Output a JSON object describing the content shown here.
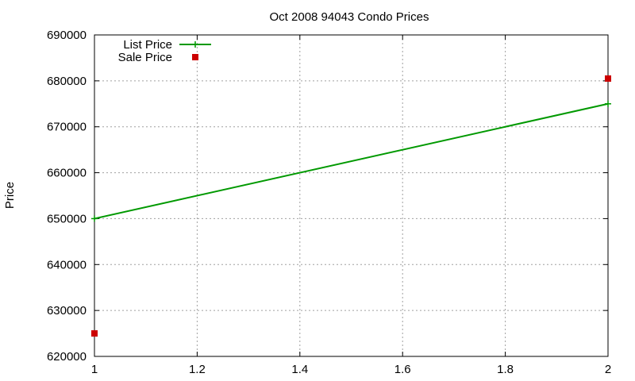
{
  "chart_data": {
    "type": "line",
    "title": "Oct 2008 94043 Condo Prices",
    "xlabel": "",
    "ylabel": "Price",
    "xlim": [
      1,
      2
    ],
    "ylim": [
      620000,
      690000
    ],
    "x_ticks": [
      1,
      1.2,
      1.4,
      1.6,
      1.8,
      2
    ],
    "x_tick_labels": [
      "1",
      "1.2",
      "1.4",
      "1.6",
      "1.8",
      "2"
    ],
    "y_ticks": [
      620000,
      630000,
      640000,
      650000,
      660000,
      670000,
      680000,
      690000
    ],
    "y_tick_labels": [
      "620000",
      "630000",
      "640000",
      "650000",
      "660000",
      "670000",
      "680000",
      "690000"
    ],
    "grid": true,
    "legend_position": "top-left",
    "series": [
      {
        "name": "List Price",
        "style": "line",
        "color": "#009900",
        "x": [
          1,
          2
        ],
        "y": [
          650000,
          675000
        ]
      },
      {
        "name": "Sale Price",
        "style": "points",
        "color": "#cc0000",
        "x": [
          1,
          2
        ],
        "y": [
          625000,
          680500
        ]
      }
    ]
  }
}
